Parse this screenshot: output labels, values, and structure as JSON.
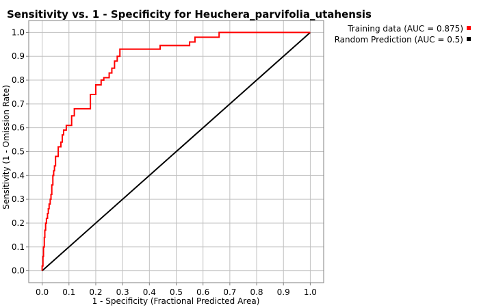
{
  "chart_data": {
    "type": "line",
    "title": "Sensitivity vs. 1 - Specificity for Heuchera_parvifolia_utahensis",
    "xlabel": "1 - Specificity  (Fractional Predicted Area)",
    "ylabel": "Sensitivity  (1 - Omission Rate)",
    "xlim": [
      -0.05,
      1.05
    ],
    "ylim": [
      -0.05,
      1.05
    ],
    "x_ticks": [
      "0.0",
      "0.1",
      "0.2",
      "0.3",
      "0.4",
      "0.5",
      "0.6",
      "0.7",
      "0.8",
      "0.9",
      "1.0"
    ],
    "y_ticks": [
      "0.0",
      "0.1",
      "0.2",
      "0.3",
      "0.4",
      "0.5",
      "0.6",
      "0.7",
      "0.8",
      "0.9",
      "1.0"
    ],
    "grid": true,
    "legend_position": "top-right",
    "series": [
      {
        "name": "Training data (AUC = 0.875)",
        "color": "#ff0000",
        "points": [
          [
            0.0,
            0.0
          ],
          [
            0.0,
            0.02
          ],
          [
            0.003,
            0.02
          ],
          [
            0.003,
            0.06
          ],
          [
            0.005,
            0.06
          ],
          [
            0.005,
            0.1
          ],
          [
            0.008,
            0.1
          ],
          [
            0.008,
            0.14
          ],
          [
            0.01,
            0.14
          ],
          [
            0.01,
            0.17
          ],
          [
            0.013,
            0.17
          ],
          [
            0.013,
            0.2
          ],
          [
            0.016,
            0.2
          ],
          [
            0.016,
            0.22
          ],
          [
            0.02,
            0.22
          ],
          [
            0.02,
            0.24
          ],
          [
            0.023,
            0.24
          ],
          [
            0.023,
            0.26
          ],
          [
            0.026,
            0.26
          ],
          [
            0.026,
            0.28
          ],
          [
            0.03,
            0.28
          ],
          [
            0.03,
            0.3
          ],
          [
            0.033,
            0.3
          ],
          [
            0.033,
            0.32
          ],
          [
            0.036,
            0.32
          ],
          [
            0.036,
            0.36
          ],
          [
            0.04,
            0.36
          ],
          [
            0.04,
            0.4
          ],
          [
            0.043,
            0.4
          ],
          [
            0.043,
            0.42
          ],
          [
            0.046,
            0.42
          ],
          [
            0.046,
            0.44
          ],
          [
            0.05,
            0.44
          ],
          [
            0.05,
            0.48
          ],
          [
            0.06,
            0.48
          ],
          [
            0.06,
            0.52
          ],
          [
            0.07,
            0.52
          ],
          [
            0.07,
            0.54
          ],
          [
            0.075,
            0.54
          ],
          [
            0.075,
            0.57
          ],
          [
            0.08,
            0.57
          ],
          [
            0.08,
            0.59
          ],
          [
            0.09,
            0.59
          ],
          [
            0.09,
            0.61
          ],
          [
            0.11,
            0.61
          ],
          [
            0.11,
            0.65
          ],
          [
            0.12,
            0.65
          ],
          [
            0.12,
            0.68
          ],
          [
            0.18,
            0.68
          ],
          [
            0.18,
            0.74
          ],
          [
            0.2,
            0.74
          ],
          [
            0.2,
            0.78
          ],
          [
            0.22,
            0.78
          ],
          [
            0.22,
            0.8
          ],
          [
            0.23,
            0.8
          ],
          [
            0.23,
            0.81
          ],
          [
            0.25,
            0.81
          ],
          [
            0.25,
            0.83
          ],
          [
            0.26,
            0.83
          ],
          [
            0.26,
            0.85
          ],
          [
            0.27,
            0.85
          ],
          [
            0.27,
            0.88
          ],
          [
            0.28,
            0.88
          ],
          [
            0.28,
            0.9
          ],
          [
            0.29,
            0.9
          ],
          [
            0.29,
            0.93
          ],
          [
            0.44,
            0.93
          ],
          [
            0.44,
            0.945
          ],
          [
            0.55,
            0.945
          ],
          [
            0.55,
            0.96
          ],
          [
            0.57,
            0.96
          ],
          [
            0.57,
            0.98
          ],
          [
            0.66,
            0.98
          ],
          [
            0.66,
            1.0
          ],
          [
            1.0,
            1.0
          ]
        ]
      },
      {
        "name": "Random Prediction (AUC = 0.5)",
        "color": "#000000",
        "points": [
          [
            0.0,
            0.0
          ],
          [
            1.0,
            1.0
          ]
        ]
      }
    ]
  }
}
